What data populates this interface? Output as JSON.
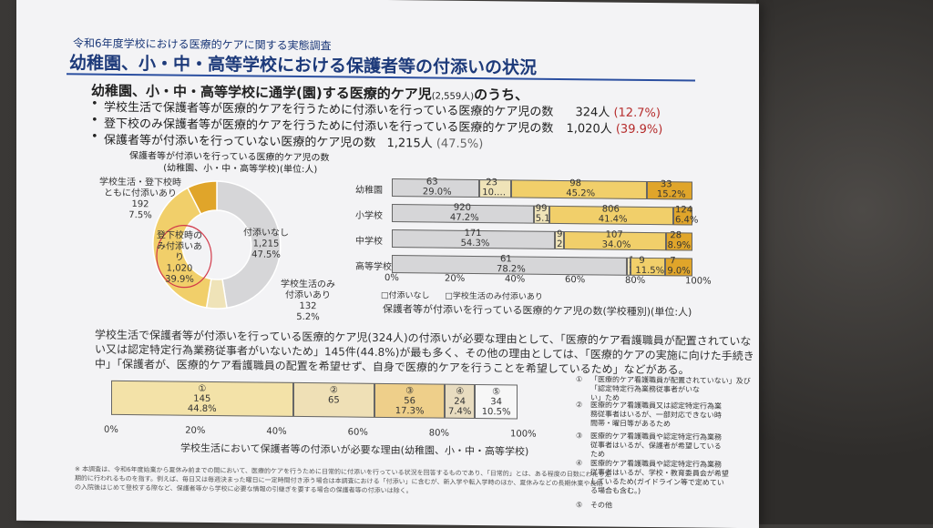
{
  "header": {
    "subtitle": "令和6年度学校における医療的ケアに関する実態調査",
    "title": "幼稚園、小・中・高等学校における保護者等の付添いの状況"
  },
  "summary": {
    "lead": "幼稚園、小・中・高等学校に通学(園)する医療的ケア児",
    "lead_count": "(2,559人)",
    "lead_tail": "のうち、",
    "items": [
      {
        "text": "学校生活で保護者等が医療的ケアを行うために付添いを行っている医療的ケア児の数",
        "count": "324人",
        "pct": "(12.7%)"
      },
      {
        "text": "登下校のみ保護者等が医療的ケアを行うために付添いを行っている医療的ケア児の数",
        "count": "1,020人",
        "pct": "(39.9%)"
      },
      {
        "text": "保護者等が付添いを行っていない医療的ケア児の数",
        "count": "1,215人",
        "pct": "(47.5%)"
      }
    ]
  },
  "donut": {
    "title1": "保護者等が付添いを行っている医療的ケア児の数",
    "title2": "(幼稚園、小・中・高等学校)(単位:人)",
    "segments": [
      {
        "label": "付添いなし",
        "value": "1,215",
        "pct": "47.5%"
      },
      {
        "label": "学校生活のみ付添いあり",
        "value": "132",
        "pct": "5.2%"
      },
      {
        "label": "登下校時のみ付添いあり",
        "value": "1,020",
        "pct": "39.9%"
      },
      {
        "label": "学校生活・登下校時ともに付添いあり",
        "value": "192",
        "pct": "7.5%"
      }
    ]
  },
  "chart_data": [
    {
      "type": "bar",
      "orientation": "horizontal-stacked-100",
      "title": "",
      "xlabel": "保護者等が付添いを行っている医療的ケア児の数(学校種別)(単位:人)",
      "categories": [
        "幼稚園",
        "小学校",
        "中学校",
        "高等学校"
      ],
      "series": [
        {
          "name": "付添いなし",
          "values": [
            63,
            920,
            171,
            61
          ],
          "pct": [
            "29.0%",
            "47.2%",
            "54.3%",
            "78.2%"
          ]
        },
        {
          "name": "学校生活のみ付添いあり",
          "values": [
            23,
            99,
            9,
            1
          ],
          "pct": [
            "10.…",
            "5.1%",
            "2.9%",
            "1.3%"
          ]
        },
        {
          "name": "",
          "values": [
            98,
            806,
            107,
            9
          ],
          "pct": [
            "45.2%",
            "41.4%",
            "34.0%",
            "11.5%"
          ]
        },
        {
          "name": "",
          "values": [
            33,
            124,
            28,
            7
          ],
          "pct": [
            "15.2%",
            "6.4%",
            "8.9%",
            "9.0%"
          ]
        }
      ],
      "ticks": [
        "0%",
        "20%",
        "40%",
        "60%",
        "80%",
        "100%"
      ],
      "legend": [
        "□付添いなし",
        "□学校生活のみ付添いあり"
      ]
    },
    {
      "type": "bar",
      "orientation": "horizontal-stacked-100",
      "xlabel": "学校生活において保護者等の付添いが必要な理由(幼稚園、小・中・高等学校)",
      "categories": [
        ""
      ],
      "series": [
        {
          "name": "①",
          "values": [
            145
          ],
          "pct": [
            "44.8%"
          ]
        },
        {
          "name": "②",
          "values": [
            65
          ],
          "pct": [
            ""
          ]
        },
        {
          "name": "③",
          "values": [
            56
          ],
          "pct": [
            "17.3%"
          ]
        },
        {
          "name": "④",
          "values": [
            24
          ],
          "pct": [
            "7.4%"
          ]
        },
        {
          "name": "⑤",
          "values": [
            34
          ],
          "pct": [
            "10.5%"
          ]
        }
      ],
      "ticks": [
        "0%",
        "20%",
        "40%",
        "60%",
        "80%",
        "100%"
      ]
    }
  ],
  "body_text": [
    "学校生活で保護者等が付添いを行っている医療的ケア児(324人)の付添いが必要な理由として、「医療的ケア看護職員が配置されていな",
    "い又は認定特定行為業務従事者がいないため」145件(44.8%)が最も多く、その他の理由としては、「医療的ケアの実施に向けた手続き",
    "中」「保護者が、医療的ケア看護職員の配置を希望せず、自身で医療的ケアを行うことを希望しているため」などがある。"
  ],
  "reasons": [
    {
      "num": "①",
      "lines": [
        "「医療的ケア看護職員が配置されていない」及び「認定特定行為業務従事者がいな",
        "い」ため"
      ]
    },
    {
      "num": "②",
      "lines": [
        "医療的ケア看護職員又は認定特定行為業",
        "務従事者はいるが、一部対応できない時",
        "間帯・曜日等があるため"
      ]
    },
    {
      "num": "③",
      "lines": [
        "医療的ケア看護職員や認定特定行為業務",
        "従事者はいるが、保護者が希望している",
        "ため"
      ]
    },
    {
      "num": "④",
      "lines": [
        "医療的ケア看護職員や認定特定行為業務",
        "従事者はいるが、学校・教育委員会が希望",
        "しているため(ガイドライン等で定めてい",
        "る場合も含む。)"
      ]
    },
    {
      "num": "⑤",
      "lines": [
        "その他"
      ]
    }
  ],
  "footnote": [
    "※ 本調査は、令和6年度始業から夏休み前までの間において、医療的ケアを行うために日常的に付添いを行っている状況を回答するものであり、「日常的」とは、ある程度の日数にわたり定",
    "期的に行われるものを指す。例えば、毎日又は毎週決まった曜日に一定時間付き添う場合は本調査における「付添い」に含むが、新入学や転入学時のほか、夏休みなどの長期休業や長期",
    "の入院後はじめて登校する際など、保護者等から学校に必要な情報の引継ぎを要する場合の保護者等の付添いは除く。"
  ],
  "colors": {
    "none": "#d6d6d8",
    "school": "#efe3b8",
    "commute": "#f1cf6a",
    "both": "#e0a52a",
    "navy": "#1d3a7a",
    "red": "#b52a2a"
  }
}
